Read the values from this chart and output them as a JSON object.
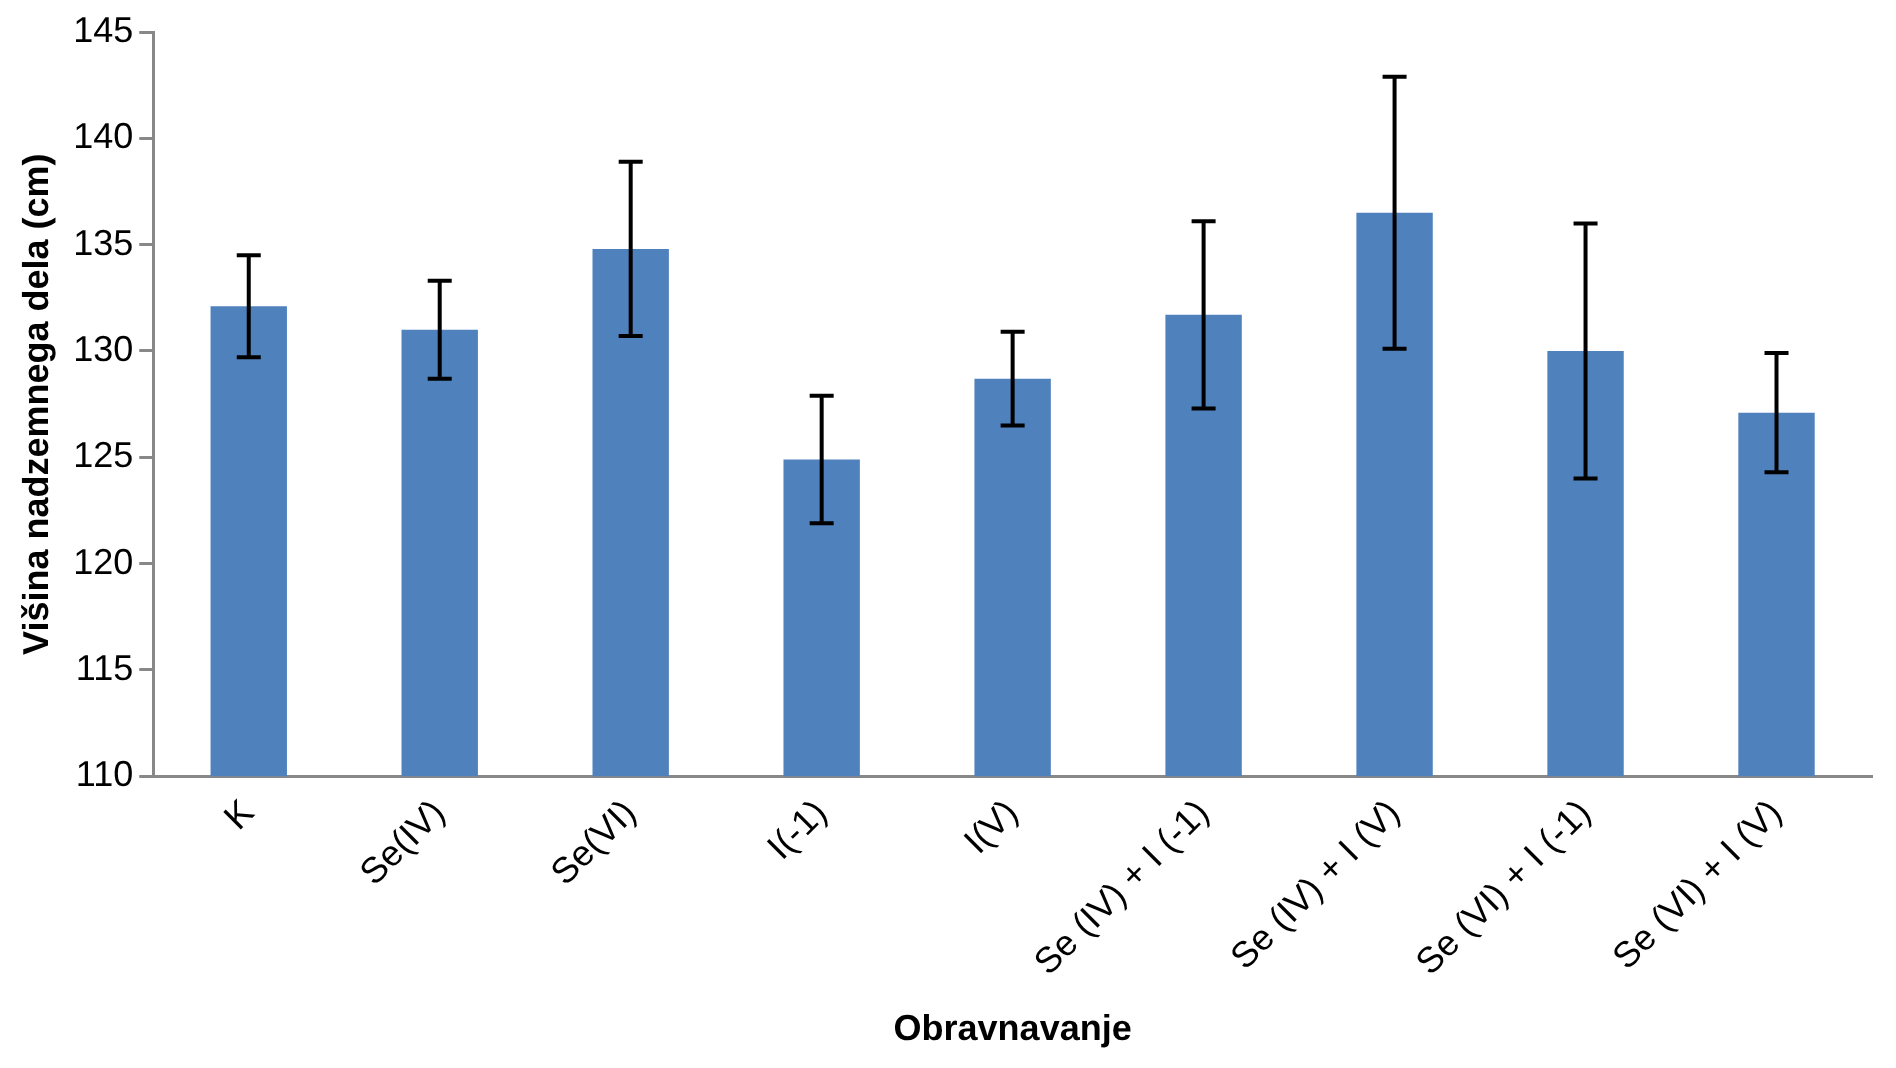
{
  "chart_data": {
    "type": "bar",
    "xlabel": "Obravnavanje",
    "ylabel": "Višina nadzemnega dela (cm)",
    "categories": [
      "K",
      "Se(IV)",
      "Se(VI)",
      "I(-1)",
      "I(V)",
      "Se (IV) + I (-1)",
      "Se (IV) + I (V)",
      "Se (VI) + I (-1)",
      "Se (VI) + I (V)"
    ],
    "values": [
      132.1,
      131.0,
      134.8,
      124.9,
      128.7,
      131.7,
      136.5,
      130.0,
      127.1
    ],
    "errors": [
      2.4,
      2.3,
      4.1,
      3.0,
      2.2,
      4.4,
      6.4,
      6.0,
      2.8
    ],
    "color": "#4f81bd",
    "ylim": [
      110,
      145
    ],
    "yticks": [
      110,
      115,
      120,
      125,
      130,
      135,
      140,
      145
    ],
    "grid": false,
    "legend": false
  }
}
